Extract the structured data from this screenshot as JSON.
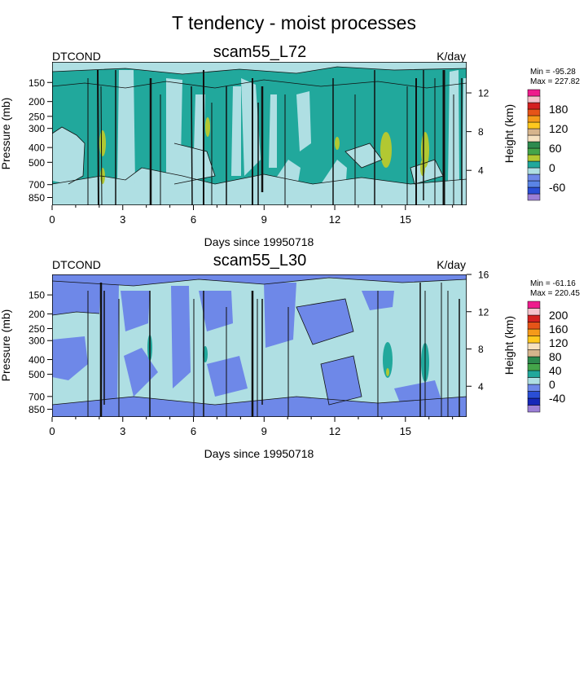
{
  "title": "T tendency - moist processes",
  "colors": {
    "teal": "#21a89c",
    "light_cyan": "#afdfe3",
    "periwinkle": "#6e88e8",
    "yellow_green": "#b2c832",
    "dark_green": "#2d8a4e",
    "green": "#44a54a",
    "navy": "#1627b8",
    "blue": "#2a4ed6",
    "cornflower": "#5a84e6",
    "lavender": "#9b7fd6",
    "pink": "#ee1b8c",
    "light_pink": "#f5c1cb",
    "red": "#d42020",
    "orange_red": "#e65418",
    "orange": "#f59a1a",
    "gold": "#ffc81e",
    "tan": "#d6b48c",
    "cream": "#f6e1c0",
    "black": "#111111"
  },
  "chart_data": [
    {
      "type": "heatmap",
      "left_label": "DTCOND",
      "title": "scam55_L72",
      "units": "K/day",
      "xlabel": "Days since 19950718",
      "ylabel": "Pressure (mb)",
      "y2label": "Height (km)",
      "x_ticks": [
        0,
        3,
        6,
        9,
        12,
        15
      ],
      "xlim": [
        0,
        17.6
      ],
      "y_ticks": [
        150,
        200,
        250,
        300,
        400,
        500,
        700,
        850
      ],
      "y2_ticks": [
        4,
        8,
        12
      ],
      "legend": {
        "min_label": "Min = -95.28",
        "max_label": "Max = 227.82",
        "levels": [
          -80,
          -60,
          -40,
          -20,
          0,
          20,
          40,
          60,
          80,
          100,
          120,
          140,
          160,
          180,
          200
        ],
        "tick_labels": [
          "180",
          "120",
          "60",
          "0",
          "-60"
        ],
        "bin_colors": [
          "#9b7fd6",
          "#2a4ed6",
          "#5a84e6",
          "#6e88e8",
          "#afdfe3",
          "#21a89c",
          "#b2c832",
          "#44a54a",
          "#2d8a4e",
          "#f6e1c0",
          "#d6b48c",
          "#ffc81e",
          "#f59a1a",
          "#e65418",
          "#d42020",
          "#f5c1cb",
          "#ee1b8c"
        ]
      }
    },
    {
      "type": "heatmap",
      "left_label": "DTCOND",
      "title": "scam55_L30",
      "units": "K/day",
      "xlabel": "Days since 19950718",
      "ylabel": "Pressure (mb)",
      "y2label": "Height (km)",
      "x_ticks": [
        0,
        3,
        6,
        9,
        12,
        15
      ],
      "xlim": [
        0,
        17.6
      ],
      "y_ticks": [
        150,
        200,
        250,
        300,
        400,
        500,
        700,
        850
      ],
      "y2_ticks": [
        4,
        8,
        12,
        16
      ],
      "legend": {
        "min_label": "Min = -61.16",
        "max_label": "Max = 220.45",
        "levels": [
          -60,
          -40,
          -20,
          0,
          20,
          40,
          60,
          80,
          100,
          120,
          140,
          160,
          180,
          200
        ],
        "tick_labels": [
          "200",
          "160",
          "120",
          "80",
          "40",
          "0",
          "-40"
        ],
        "bin_colors": [
          "#9b7fd6",
          "#1627b8",
          "#2a4ed6",
          "#6e88e8",
          "#afdfe3",
          "#21a89c",
          "#44a54a",
          "#2d8a4e",
          "#d6b48c",
          "#f6e1c0",
          "#ffc81e",
          "#f59a1a",
          "#e65418",
          "#d42020",
          "#f5c1cb",
          "#ee1b8c"
        ]
      }
    }
  ]
}
